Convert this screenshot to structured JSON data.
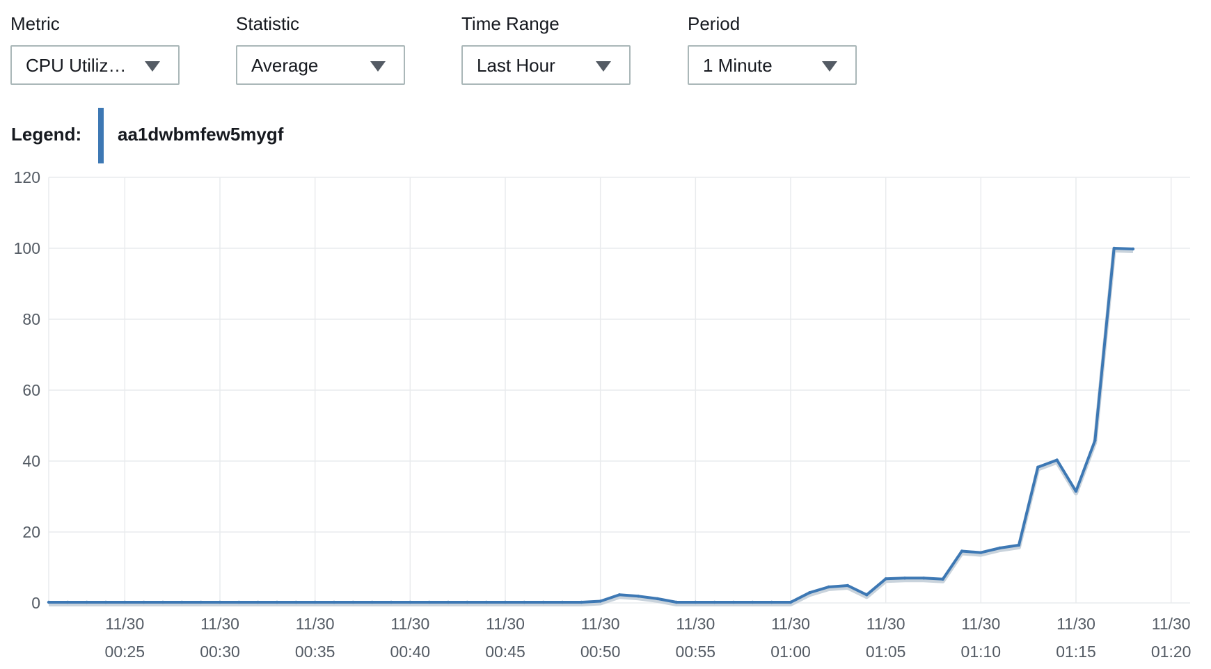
{
  "controls": [
    {
      "label": "Metric",
      "value": "CPU Utiliz…"
    },
    {
      "label": "Statistic",
      "value": "Average"
    },
    {
      "label": "Time Range",
      "value": "Last Hour"
    },
    {
      "label": "Period",
      "value": "1 Minute"
    }
  ],
  "legend": {
    "label": "Legend:",
    "series_name": "aa1dwbmfew5mygf"
  },
  "colors": {
    "series": "#3d78b4",
    "grid": "#e9ebed",
    "axis_text": "#545b64"
  },
  "chart_data": {
    "type": "line",
    "title": "",
    "xlabel": "",
    "ylabel": "",
    "ylim": [
      0,
      120
    ],
    "yticks": [
      0,
      20,
      40,
      60,
      80,
      100,
      120
    ],
    "x_tick_labels": [
      [
        "11/30",
        "00:25"
      ],
      [
        "11/30",
        "00:30"
      ],
      [
        "11/30",
        "00:35"
      ],
      [
        "11/30",
        "00:40"
      ],
      [
        "11/30",
        "00:45"
      ],
      [
        "11/30",
        "00:50"
      ],
      [
        "11/30",
        "00:55"
      ],
      [
        "11/30",
        "01:00"
      ],
      [
        "11/30",
        "01:05"
      ],
      [
        "11/30",
        "01:10"
      ],
      [
        "11/30",
        "01:15"
      ],
      [
        "11/30",
        "01:20"
      ]
    ],
    "xlim": [
      "00:21",
      "01:21"
    ],
    "grid": true,
    "legend_position": "top-left",
    "series": [
      {
        "name": "aa1dwbmfew5mygf",
        "points": [
          [
            "00:21",
            0.2
          ],
          [
            "00:22",
            0.2
          ],
          [
            "00:23",
            0.2
          ],
          [
            "00:24",
            0.2
          ],
          [
            "00:25",
            0.2
          ],
          [
            "00:26",
            0.2
          ],
          [
            "00:27",
            0.2
          ],
          [
            "00:28",
            0.2
          ],
          [
            "00:29",
            0.2
          ],
          [
            "00:30",
            0.2
          ],
          [
            "00:31",
            0.2
          ],
          [
            "00:32",
            0.2
          ],
          [
            "00:33",
            0.2
          ],
          [
            "00:34",
            0.2
          ],
          [
            "00:35",
            0.2
          ],
          [
            "00:36",
            0.2
          ],
          [
            "00:37",
            0.2
          ],
          [
            "00:38",
            0.2
          ],
          [
            "00:39",
            0.2
          ],
          [
            "00:40",
            0.2
          ],
          [
            "00:41",
            0.2
          ],
          [
            "00:42",
            0.2
          ],
          [
            "00:43",
            0.2
          ],
          [
            "00:44",
            0.2
          ],
          [
            "00:45",
            0.2
          ],
          [
            "00:46",
            0.2
          ],
          [
            "00:47",
            0.2
          ],
          [
            "00:48",
            0.2
          ],
          [
            "00:49",
            0.2
          ],
          [
            "00:50",
            0.5
          ],
          [
            "00:51",
            2.3
          ],
          [
            "00:52",
            1.9
          ],
          [
            "00:53",
            1.2
          ],
          [
            "00:54",
            0.2
          ],
          [
            "00:55",
            0.2
          ],
          [
            "00:56",
            0.2
          ],
          [
            "00:57",
            0.2
          ],
          [
            "00:58",
            0.2
          ],
          [
            "00:59",
            0.2
          ],
          [
            "01:00",
            0.2
          ],
          [
            "01:01",
            2.9
          ],
          [
            "01:02",
            4.5
          ],
          [
            "01:03",
            4.9
          ],
          [
            "01:04",
            2.3
          ],
          [
            "01:05",
            6.8
          ],
          [
            "01:06",
            7.0
          ],
          [
            "01:07",
            7.0
          ],
          [
            "01:08",
            6.7
          ],
          [
            "01:09",
            14.6
          ],
          [
            "01:10",
            14.2
          ],
          [
            "01:11",
            15.5
          ],
          [
            "01:12",
            16.3
          ],
          [
            "01:13",
            38.3
          ],
          [
            "01:14",
            40.3
          ],
          [
            "01:15",
            31.5
          ],
          [
            "01:16",
            45.8
          ],
          [
            "01:17",
            100.0
          ],
          [
            "01:18",
            99.8
          ]
        ]
      }
    ]
  }
}
